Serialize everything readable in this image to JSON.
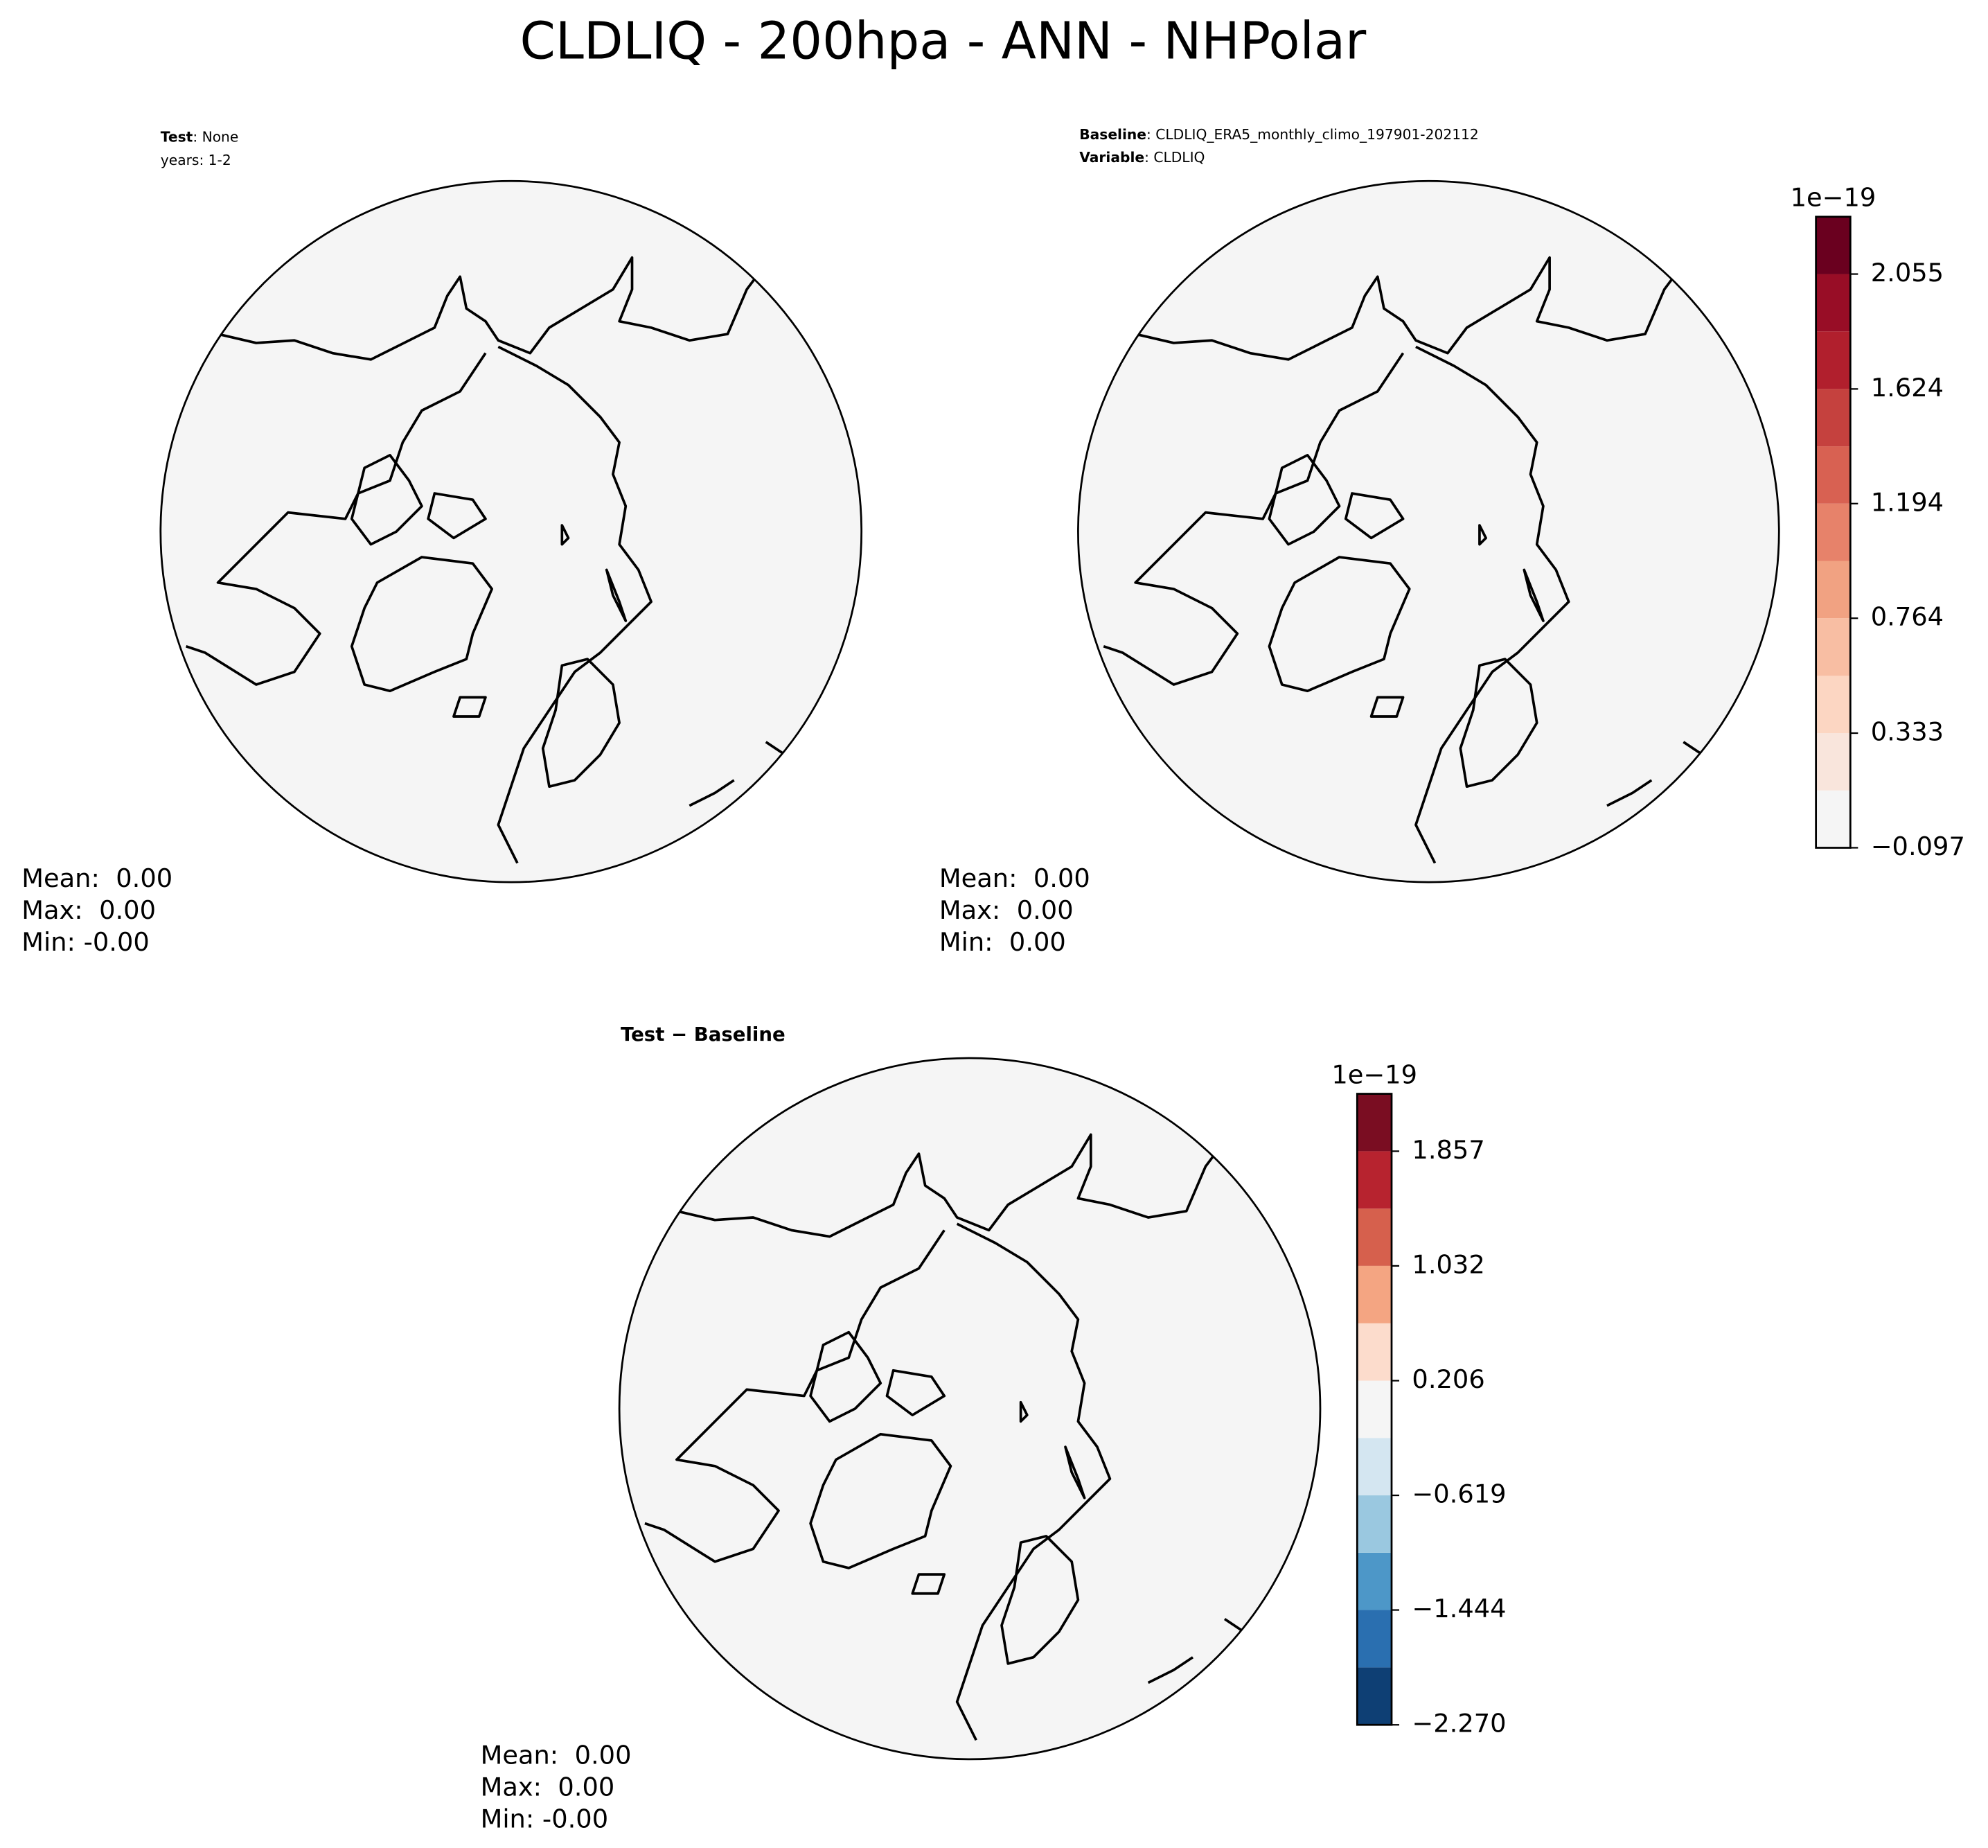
{
  "title": "CLDLIQ - 200hpa - ANN - NHPolar",
  "chart_data": [
    {
      "type": "map",
      "subtitle_lines": [
        {
          "bold": "Test",
          "text": ": None"
        },
        {
          "text": "years: 1-2"
        }
      ],
      "stats": [
        "Mean:  0.00",
        "Max:  0.00",
        "Min: -0.00"
      ]
    },
    {
      "type": "map",
      "subtitle_lines": [
        {
          "bold": "Baseline",
          "text": ": CLDLIQ_ERA5_monthly_climo_197901-202112"
        },
        {
          "bold": "Variable",
          "text": ": CLDLIQ"
        }
      ],
      "stats": [
        "Mean:  0.00",
        "Max:  0.00",
        "Min:  0.00"
      ],
      "colorbar": {
        "offset_label": "1e−19",
        "levels": [
          -0.097,
          0.118,
          0.333,
          0.548,
          0.764,
          0.979,
          1.194,
          1.409,
          1.624,
          1.84,
          2.055,
          2.27
        ],
        "colors": [
          "#f5f5f5",
          "#f9e5dc",
          "#fcd6c2",
          "#f8bea3",
          "#f1a282",
          "#e7826a",
          "#d86152",
          "#c5413e",
          "#b11f2d",
          "#980d26",
          "#6a001f"
        ],
        "ylim": [
          -0.097,
          2.27
        ],
        "yticks": [
          {
            "value": -0.097,
            "label": "−0.097"
          },
          0.333,
          0.764,
          1.194,
          1.624,
          2.055
        ]
      }
    },
    {
      "type": "map",
      "title": "Test − Baseline",
      "stats": [
        "Mean:  0.00",
        "Max:  0.00",
        "Min: -0.00"
      ],
      "colorbar": {
        "offset_label": "1e−19",
        "levels": [
          -2.27,
          -1.857,
          -1.444,
          -1.032,
          -0.619,
          -0.206,
          0.206,
          0.619,
          1.032,
          1.444,
          1.857,
          2.27
        ],
        "colors": [
          "#0e3f74",
          "#2a6fb0",
          "#4d97c8",
          "#9ac8e0",
          "#d4e6f1",
          "#f5f5f5",
          "#fcdccc",
          "#f4a582",
          "#d6604d",
          "#b7232f",
          "#7a0d22"
        ],
        "ylim": [
          -2.27,
          2.27
        ],
        "yticks": [
          {
            "value": -2.27,
            "label": "−2.270"
          },
          {
            "value": -1.444,
            "label": "−1.444"
          },
          {
            "value": -0.619,
            "label": "−0.619"
          },
          0.206,
          1.032,
          1.857
        ]
      }
    }
  ]
}
